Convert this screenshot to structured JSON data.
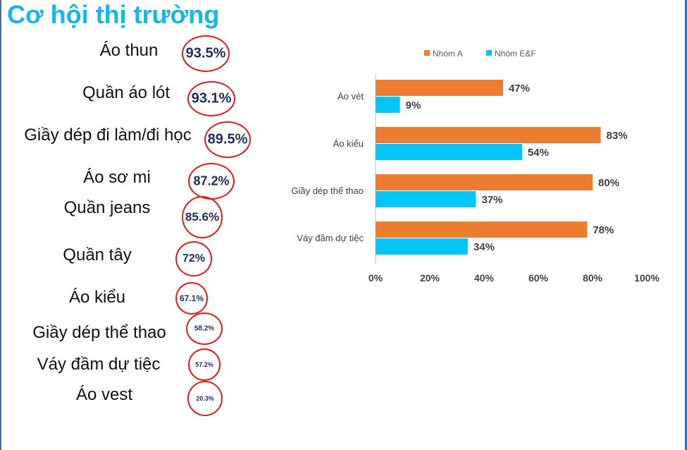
{
  "title": "Cơ hội thị trường",
  "items": [
    {
      "label": "Áo thun",
      "value": "93.5%"
    },
    {
      "label": "Quần áo lót",
      "value": "93.1%"
    },
    {
      "label": "Giầy dép đi làm/đi học",
      "value": "89.5%"
    },
    {
      "label": "Áo sơ mi",
      "value": "87.2%"
    },
    {
      "label": "Quần jeans",
      "value": "85.6%"
    },
    {
      "label": "Quần tây",
      "value": "72%"
    },
    {
      "label": "Áo kiểu",
      "value": "67.1%"
    },
    {
      "label": "Giầy dép thể thao",
      "value": "58.2%"
    },
    {
      "label": "Váy đầm dự tiệc",
      "value": "57.2%"
    },
    {
      "label": "Áo vest",
      "value": "20.3%"
    }
  ],
  "colors": {
    "title": "#16b7e6",
    "ring": "#e31b1b",
    "series_a": "#ed7d31",
    "series_b": "#00c5f5"
  },
  "chart_data": {
    "type": "bar",
    "orientation": "horizontal",
    "categories": [
      "Áo vét",
      "Áo kiểu",
      "Giầy dép thể thao",
      "Váy đầm  dự tiệc"
    ],
    "series": [
      {
        "name": "Nhóm A",
        "values": [
          47,
          83,
          80,
          78
        ],
        "labels": [
          "47%",
          "83%",
          "80%",
          "78%"
        ],
        "color": "#ed7d31"
      },
      {
        "name": "Nhóm E&F",
        "values": [
          9,
          54,
          37,
          34
        ],
        "labels": [
          "9%",
          "54%",
          "37%",
          "34%"
        ],
        "color": "#00c5f5"
      }
    ],
    "xlim": [
      0,
      100
    ],
    "xticks": [
      "0%",
      "20%",
      "40%",
      "60%",
      "80%",
      "100%"
    ],
    "legend": "top",
    "grid": false
  }
}
